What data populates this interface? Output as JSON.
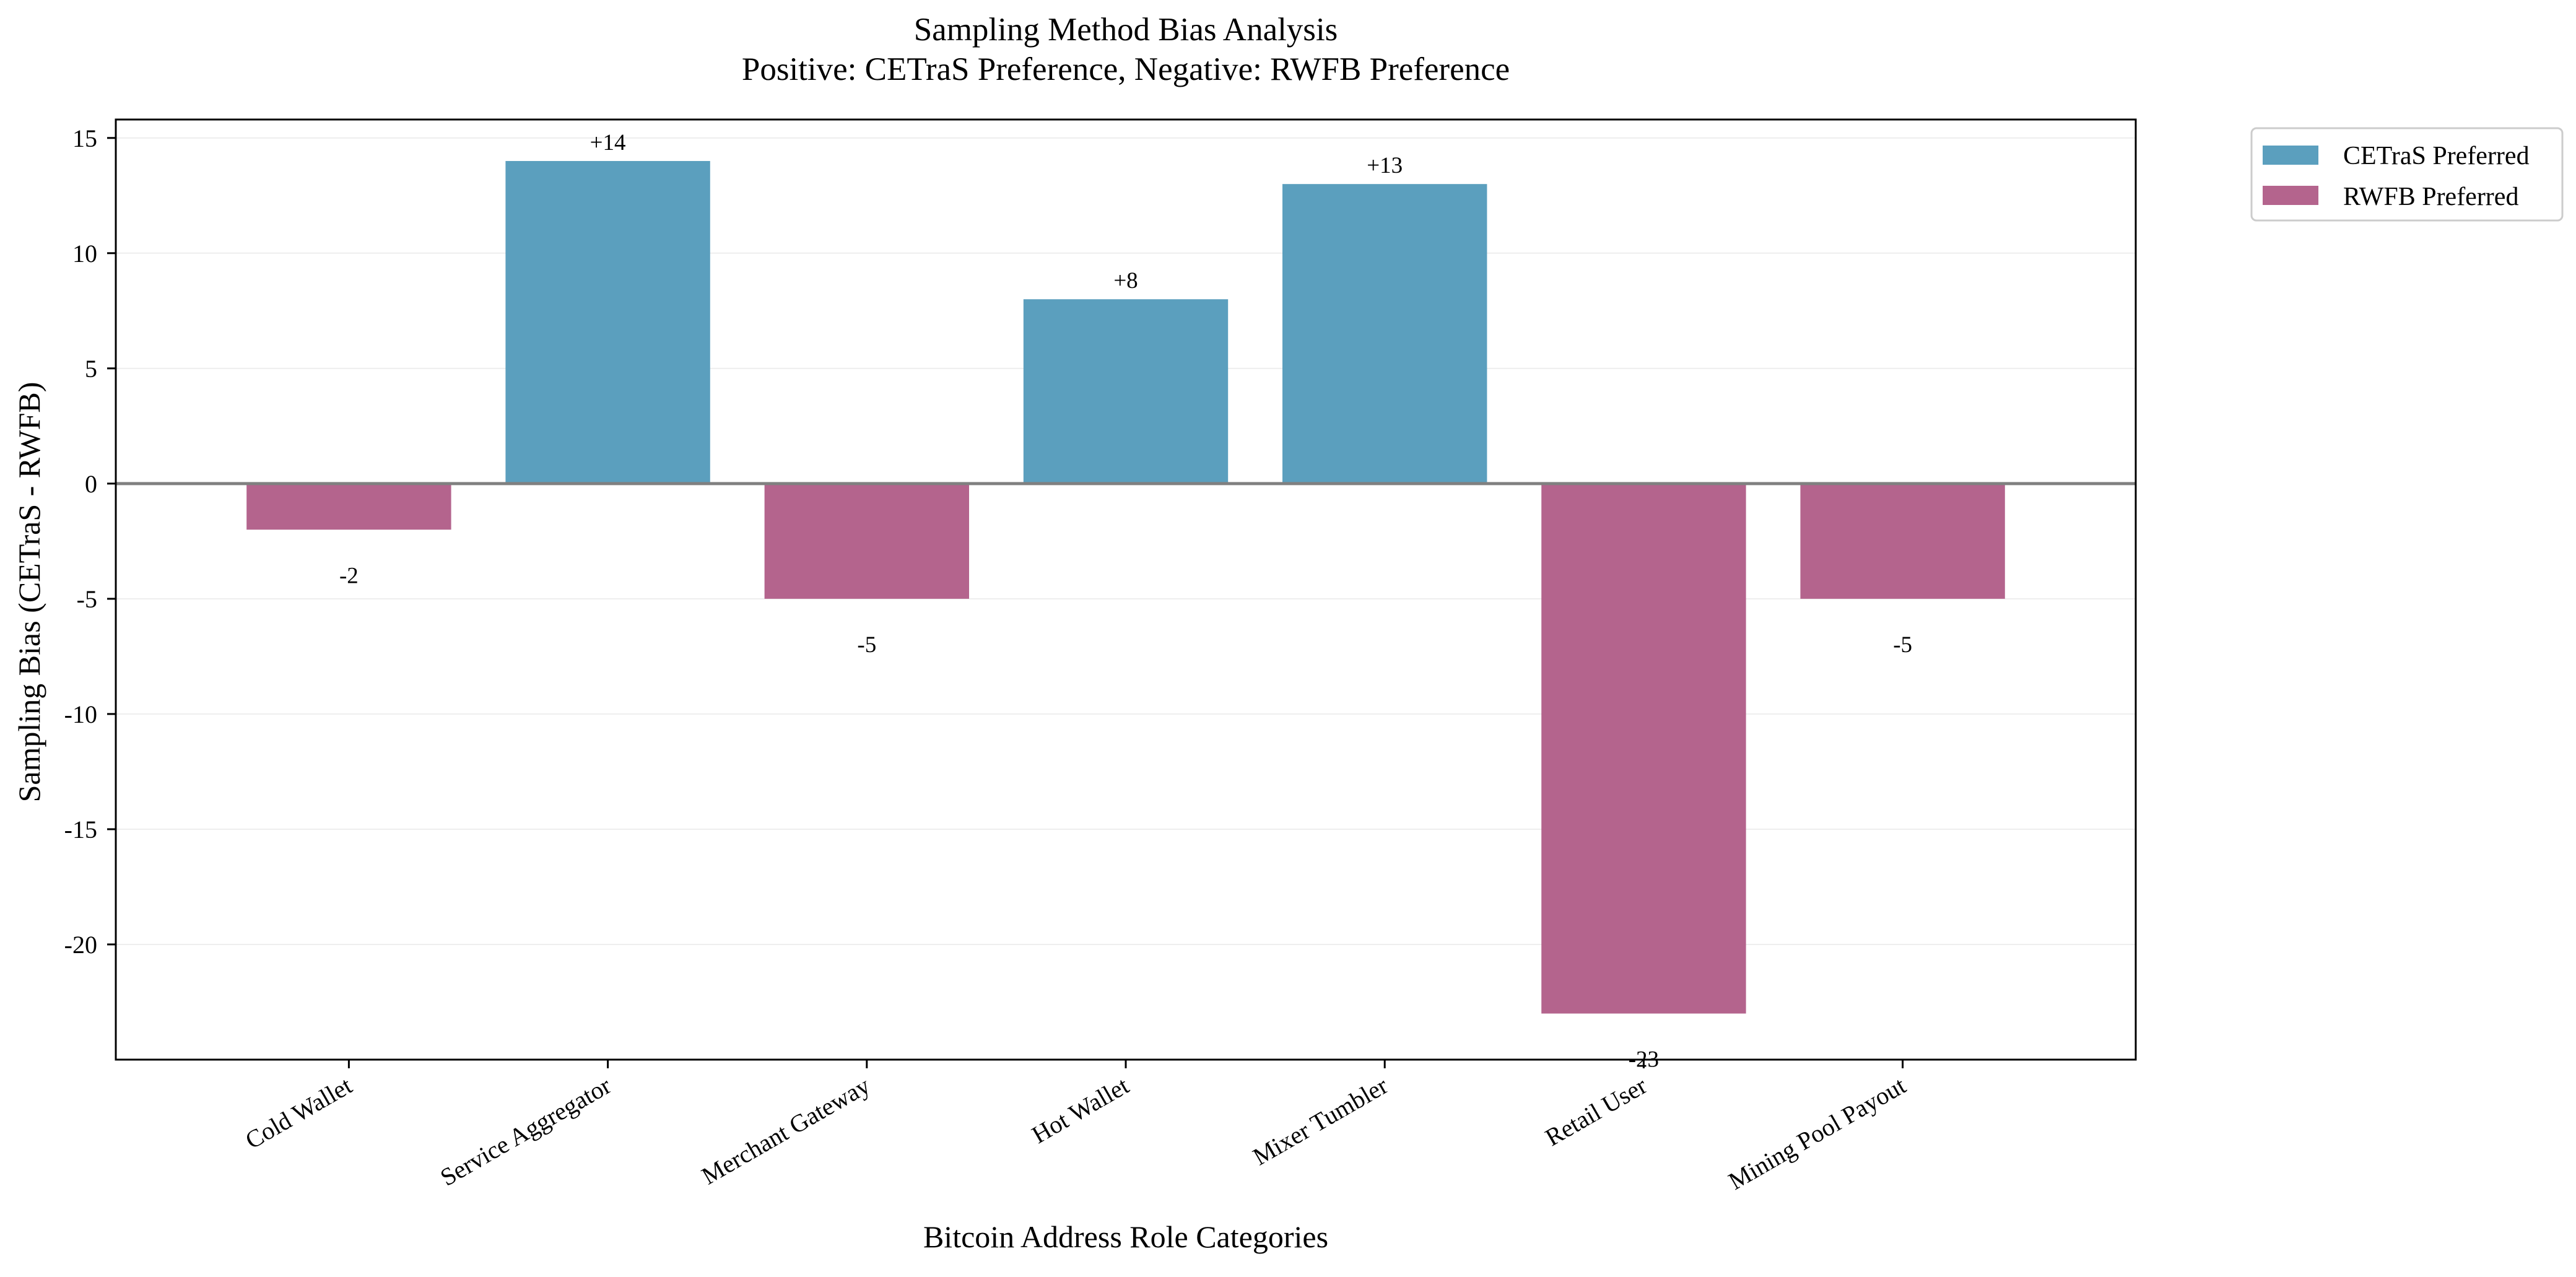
{
  "chart_data": {
    "type": "bar",
    "title": "Sampling Method Bias Analysis",
    "subtitle": "Positive: CETraS Preference, Negative: RWFB Preference",
    "xlabel": "Bitcoin Address Role Categories",
    "ylabel": "Sampling Bias (CETraS - RWFB)",
    "categories": [
      "Cold Wallet",
      "Service Aggregator",
      "Merchant Gateway",
      "Hot Wallet",
      "Mixer Tumbler",
      "Retail User",
      "Mining Pool Payout"
    ],
    "values": [
      -2,
      14,
      -5,
      8,
      13,
      -23,
      -5
    ],
    "data_labels": [
      "-2",
      "+14",
      "-5",
      "+8",
      "+13",
      "-23",
      "-5"
    ],
    "ylim": [
      -25,
      15.8
    ],
    "yticks": [
      15,
      10,
      5,
      0,
      -5,
      -10,
      -15,
      -20
    ],
    "ytick_labels": [
      "15",
      "10",
      "5",
      "0",
      "-5",
      "-10",
      "-15",
      "-20"
    ],
    "grid": true,
    "zero_line": true,
    "colors": {
      "positive": "#5b9fbe",
      "negative": "#b4648d",
      "zero_line": "#808080",
      "grid": "#eeeeee",
      "axes": "#000000"
    },
    "legend": {
      "placement": "outside-top-right",
      "entries": [
        {
          "label": "CETraS Preferred",
          "color": "#5b9fbe"
        },
        {
          "label": "RWFB Preferred",
          "color": "#b4648d"
        }
      ]
    }
  }
}
